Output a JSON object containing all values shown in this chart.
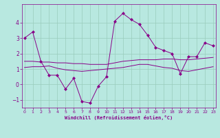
{
  "xlabel": "Windchill (Refroidissement éolien,°C)",
  "x_values": [
    0,
    1,
    2,
    3,
    4,
    5,
    6,
    7,
    8,
    9,
    10,
    11,
    12,
    13,
    14,
    15,
    16,
    17,
    18,
    19,
    20,
    21,
    22,
    23
  ],
  "line1_y": [
    3.0,
    3.4,
    1.5,
    0.6,
    0.6,
    -0.3,
    0.4,
    -1.1,
    -1.2,
    -0.1,
    0.5,
    4.1,
    4.6,
    4.2,
    3.9,
    3.2,
    2.4,
    2.2,
    2.0,
    0.7,
    1.8,
    1.8,
    2.7,
    2.5
  ],
  "line2_y": [
    1.5,
    1.5,
    1.45,
    1.45,
    1.4,
    1.4,
    1.35,
    1.35,
    1.3,
    1.3,
    1.3,
    1.4,
    1.5,
    1.55,
    1.6,
    1.6,
    1.6,
    1.65,
    1.65,
    1.6,
    1.6,
    1.65,
    1.7,
    1.75
  ],
  "line3_y": [
    1.1,
    1.15,
    1.15,
    1.2,
    1.05,
    0.95,
    0.9,
    0.85,
    0.9,
    0.95,
    1.0,
    1.05,
    1.1,
    1.2,
    1.3,
    1.3,
    1.2,
    1.1,
    1.05,
    0.9,
    0.85,
    0.95,
    1.05,
    1.15
  ],
  "line_color": "#880088",
  "bg_color": "#b8e8e0",
  "grid_color": "#99ccbb",
  "ylim": [
    -1.5,
    5.2
  ],
  "yticks": [
    -1,
    0,
    1,
    2,
    3,
    4
  ],
  "xlim": [
    -0.3,
    23.3
  ]
}
